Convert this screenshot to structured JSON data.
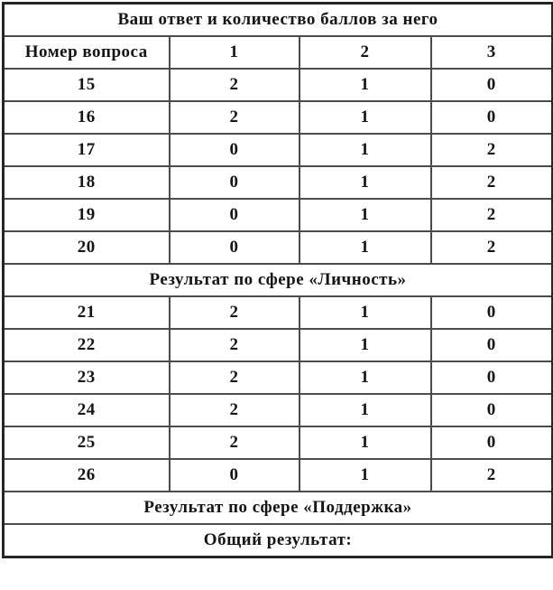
{
  "table": {
    "title": "Ваш ответ и количество баллов за него",
    "columns": [
      "Номер вопроса",
      "1",
      "2",
      "3"
    ],
    "rows": [
      {
        "type": "data",
        "cells": [
          "15",
          "2",
          "1",
          "0"
        ]
      },
      {
        "type": "data",
        "cells": [
          "16",
          "2",
          "1",
          "0"
        ]
      },
      {
        "type": "data",
        "cells": [
          "17",
          "0",
          "1",
          "2"
        ]
      },
      {
        "type": "data",
        "cells": [
          "18",
          "0",
          "1",
          "2"
        ]
      },
      {
        "type": "data",
        "cells": [
          "19",
          "0",
          "1",
          "2"
        ]
      },
      {
        "type": "data",
        "cells": [
          "20",
          "0",
          "1",
          "2"
        ]
      },
      {
        "type": "section",
        "label": "Результат по сфере «Личность»"
      },
      {
        "type": "data",
        "cells": [
          "21",
          "2",
          "1",
          "0"
        ]
      },
      {
        "type": "data",
        "cells": [
          "22",
          "2",
          "1",
          "0"
        ]
      },
      {
        "type": "data",
        "cells": [
          "23",
          "2",
          "1",
          "0"
        ]
      },
      {
        "type": "data",
        "cells": [
          "24",
          "2",
          "1",
          "0"
        ]
      },
      {
        "type": "data",
        "cells": [
          "25",
          "2",
          "1",
          "0"
        ]
      },
      {
        "type": "data",
        "cells": [
          "26",
          "0",
          "1",
          "2"
        ]
      },
      {
        "type": "section",
        "label": "Результат по сфере «Поддержка»"
      },
      {
        "type": "section",
        "label": "Общий результат:"
      }
    ],
    "colors": {
      "text": "#141414",
      "border_inner": "#4a4a4a",
      "border_outer": "#262626",
      "background": "#ffffff"
    }
  }
}
